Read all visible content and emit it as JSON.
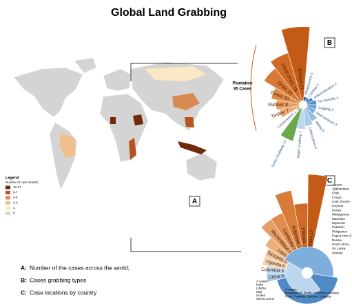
{
  "title": "Global Land Grabbing",
  "panel_labels": {
    "a": "A",
    "b": "B",
    "c": "C"
  },
  "legend": {
    "title": "Legend",
    "subtitle": "Number of case studies",
    "items": [
      {
        "label": "10-17",
        "color": "#6e2a0a"
      },
      {
        "label": "6-7",
        "color": "#b5541c"
      },
      {
        "label": "4-5",
        "color": "#d98a4e"
      },
      {
        "label": "2-3",
        "color": "#f0bf8e"
      },
      {
        "label": "1",
        "color": "#fbe8c4"
      },
      {
        "label": "0",
        "color": "#d4d4d4"
      }
    ]
  },
  "panel_b": {
    "group_label": [
      "Plantation",
      "85 Cases"
    ],
    "types": [
      {
        "label": "Biofuel 27",
        "cases": 27,
        "color": "#c45a17",
        "group": true
      },
      {
        "label": "Food crops 18",
        "cases": 18,
        "color": "#cf6a26",
        "group": true
      },
      {
        "label": "Grain 15",
        "cases": 15,
        "color": "#d77a36",
        "group": true
      },
      {
        "label": "Grass 10",
        "cases": 10,
        "color": "#df8c4b",
        "group": true
      },
      {
        "label": "Rubber 8",
        "cases": 8,
        "color": "#e59d60",
        "group": true
      },
      {
        "label": "Timber 7",
        "cases": 7,
        "color": "#ebae78",
        "group": true
      },
      {
        "label": "Conservation 1",
        "cases": 1,
        "color": "#a8cf8c",
        "group": false
      },
      {
        "label": "Green Grabbing 12",
        "cases": 12,
        "color": "#6aa84f",
        "group": false
      },
      {
        "label": "Water Grabbing 7",
        "cases": 7,
        "color": "#bcd6ee",
        "group": false
      },
      {
        "label": "Urbanization 6",
        "cases": 6,
        "color": "#a9cbe9",
        "group": false
      },
      {
        "label": "Mining 5",
        "cases": 5,
        "color": "#93bde2",
        "group": false
      },
      {
        "label": "Multi-purpose 3",
        "cases": 3,
        "color": "#7eaedb",
        "group": false
      },
      {
        "label": "Logging 3",
        "cases": 3,
        "color": "#6a9fd3",
        "group": false
      },
      {
        "label": "No Specific 3",
        "cases": 3,
        "color": "#5690cb",
        "group": false
      },
      {
        "label": "Industrialization 2",
        "cases": 2,
        "color": "#4682c1",
        "group": false
      },
      {
        "label": "Criminal 1",
        "cases": 1,
        "color": "#3774b6",
        "group": false
      },
      {
        "label": "Infrastructure 1",
        "cases": 1,
        "color": "#2c66a8",
        "group": false
      }
    ]
  },
  "panel_c": {
    "countries": [
      {
        "label": "Ghana 17",
        "cases": 17,
        "color": "#c45a17"
      },
      {
        "label": "Ethiopia 11",
        "cases": 11,
        "color": "#d06b27"
      },
      {
        "label": "Indonesia 14",
        "cases": 14,
        "color": "#d97c3a"
      },
      {
        "label": "Cambodia 10",
        "cases": 10,
        "color": "#e08d4f"
      },
      {
        "label": "Mozambique 10",
        "cases": 10,
        "color": "#e69e65"
      },
      {
        "label": "Laos 7",
        "cases": 7,
        "color": "#ebaf7c"
      },
      {
        "label": "Tanzania 6",
        "cases": 6,
        "color": "#f0c095"
      },
      {
        "label": "Uganda 6",
        "cases": 6,
        "color": "#f4d1ae"
      },
      {
        "label": "Colombia 5",
        "cases": 5,
        "color": "#bcd6ee"
      },
      {
        "label": "China 5",
        "cases": 5,
        "color": "#a9cbe9"
      }
    ],
    "groups": [
      {
        "heading": "3 cases:",
        "cases": 3,
        "color": "#4f8ac6",
        "countries": [
          "Bangladesh, Brazil, Honduras, Malawi,",
          "Peru, Rwanda, Zambia, Uruguay"
        ]
      },
      {
        "heading": "2 cases:",
        "cases": 2,
        "color": "#7eaedb",
        "countries": [
          "India",
          "Liberia",
          "Mali",
          "Sudan",
          "Sierra Leone"
        ]
      },
      {
        "heading": "1 case:",
        "cases": 1,
        "color": "#bcd6ee",
        "countries": [
          "Afghanistan",
          "Chile",
          "Congo",
          "Cote d'Ivoire",
          "Guyana",
          "Kenya",
          "Madagascar",
          "Mauritius",
          "Myanmar",
          "Pakistan",
          "Philippines",
          "Papua New Guinea",
          "Russia",
          "South Africa",
          "Sri Lanka",
          "Ukraine"
        ]
      }
    ]
  },
  "captions": [
    {
      "key": "A:",
      "text": "Number of the cases across the world;"
    },
    {
      "key": "B:",
      "text": "Cases grabbing types"
    },
    {
      "key": "C:",
      "text": "Case locations by country"
    }
  ]
}
